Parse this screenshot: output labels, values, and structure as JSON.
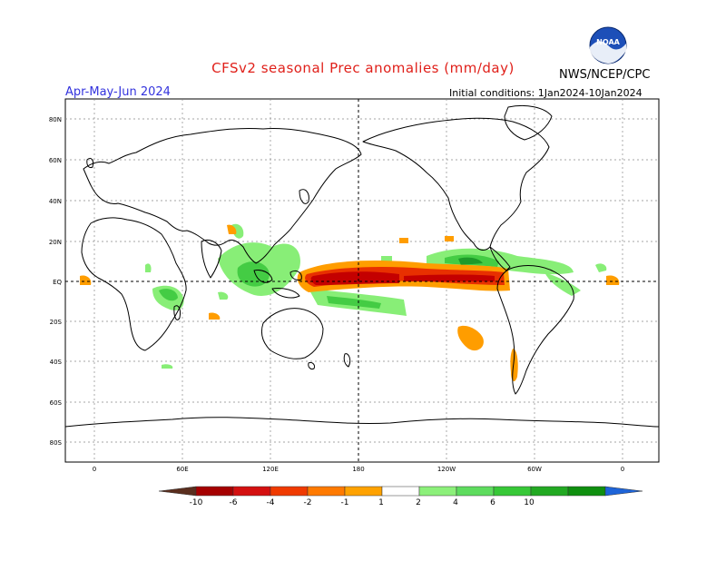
{
  "header": {
    "title": "CFSv2 seasonal Prec anomalies (mm/day)",
    "agency": "NWS/NCEP/CPC",
    "logo_text": "NOAA",
    "period": "Apr-May-Jun 2024",
    "initial_conditions": "Initial conditions: 1Jan2024-10Jan2024"
  },
  "axes": {
    "lat_labels": [
      "80N",
      "60N",
      "40N",
      "20N",
      "EQ",
      "20S",
      "40S",
      "60S",
      "80S"
    ],
    "lon_labels": [
      "0",
      "60E",
      "120E",
      "180",
      "120W",
      "60W",
      "0"
    ]
  },
  "legend": {
    "labels": [
      "-10",
      "-6",
      "-4",
      "-2",
      "-1",
      "1",
      "2",
      "4",
      "6",
      "10"
    ],
    "colors": [
      "#5a2e1e",
      "#a50000",
      "#d41010",
      "#f03a00",
      "#ff7a00",
      "#ffa200",
      "#ffffff",
      "#8cf07a",
      "#5edc5e",
      "#37c837",
      "#22a922",
      "#0f8f0f",
      "#1e64d8"
    ]
  },
  "colors": {
    "title": "#e0201a",
    "period": "#3333dd",
    "neg_strong": "#c40000",
    "neg_med": "#e83000",
    "neg_weak": "#ff9d00",
    "pos_weak": "#88ee77",
    "pos_med": "#44cc44",
    "pos_strong": "#1e9a2a"
  }
}
